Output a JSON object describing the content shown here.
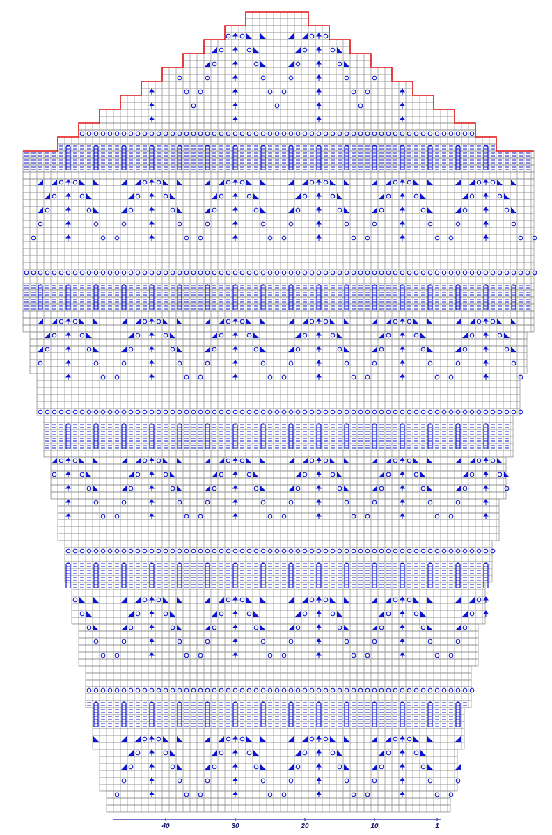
{
  "stitch_axis": {
    "ticks": [
      40,
      30,
      20,
      10,
      1
    ]
  }
}
